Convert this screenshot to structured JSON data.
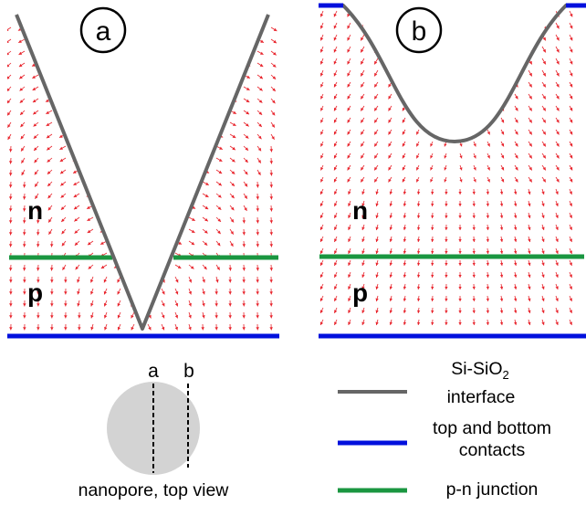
{
  "panels": [
    {
      "label": "a",
      "shape": "v-groove",
      "regions": [
        "n",
        "p"
      ]
    },
    {
      "label": "b",
      "shape": "rounded-pore",
      "regions": [
        "n",
        "p"
      ]
    }
  ],
  "inset": {
    "cut_a": "a",
    "cut_b": "b",
    "caption": "nanopore, top view"
  },
  "legend": {
    "interface_line1": "Si-SiO",
    "interface_sub": "2",
    "interface_line2": "interface",
    "contacts_line1": "top and bottom",
    "contacts_line2": "contacts",
    "junction": "p-n junction"
  },
  "colors": {
    "interface": "#666666",
    "contacts": "#0010dd",
    "junction": "#1a9640",
    "field_arrows": "#e8242c",
    "pore_fill": "#d3d3d3"
  }
}
